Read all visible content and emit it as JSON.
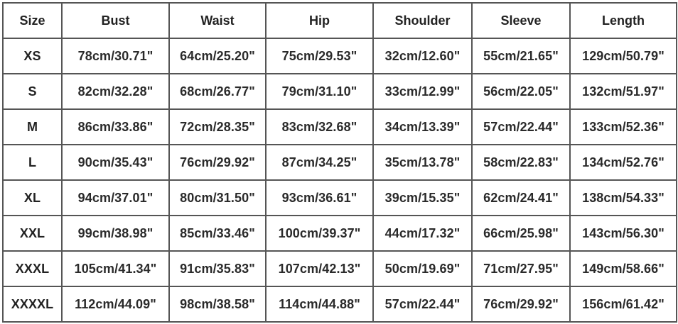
{
  "size_chart": {
    "headers": [
      "Size",
      "Bust",
      "Waist",
      "Hip",
      "Shoulder",
      "Sleeve",
      "Length"
    ],
    "rows": [
      [
        "XS",
        "78cm/30.71\"",
        "64cm/25.20\"",
        "75cm/29.53\"",
        "32cm/12.60\"",
        "55cm/21.65\"",
        "129cm/50.79\""
      ],
      [
        "S",
        "82cm/32.28\"",
        "68cm/26.77\"",
        "79cm/31.10\"",
        "33cm/12.99\"",
        "56cm/22.05\"",
        "132cm/51.97\""
      ],
      [
        "M",
        "86cm/33.86\"",
        "72cm/28.35\"",
        "83cm/32.68\"",
        "34cm/13.39\"",
        "57cm/22.44\"",
        "133cm/52.36\""
      ],
      [
        "L",
        "90cm/35.43\"",
        "76cm/29.92\"",
        "87cm/34.25\"",
        "35cm/13.78\"",
        "58cm/22.83\"",
        "134cm/52.76\""
      ],
      [
        "XL",
        "94cm/37.01\"",
        "80cm/31.50\"",
        "93cm/36.61\"",
        "39cm/15.35\"",
        "62cm/24.41\"",
        "138cm/54.33\""
      ],
      [
        "XXL",
        "99cm/38.98\"",
        "85cm/33.46\"",
        "100cm/39.37\"",
        "44cm/17.32\"",
        "66cm/25.98\"",
        "143cm/56.30\""
      ],
      [
        "XXXL",
        "105cm/41.34\"",
        "91cm/35.83\"",
        "107cm/42.13\"",
        "50cm/19.69\"",
        "71cm/27.95\"",
        "149cm/58.66\""
      ],
      [
        "XXXXL",
        "112cm/44.09\"",
        "98cm/38.58\"",
        "114cm/44.88\"",
        "57cm/22.44\"",
        "76cm/29.92\"",
        "156cm/61.42\""
      ]
    ]
  }
}
